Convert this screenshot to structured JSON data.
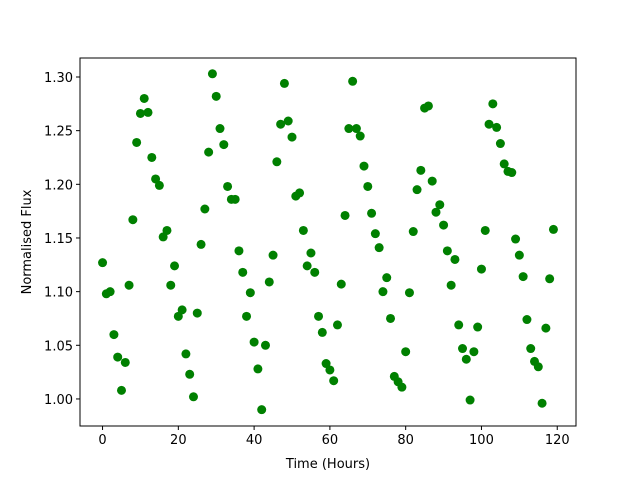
{
  "chart_data": {
    "type": "scatter",
    "xlabel": "Time (Hours)",
    "ylabel": "Normalised Flux",
    "series": [
      {
        "color": "#008000",
        "x": [
          0,
          1,
          2,
          3,
          4,
          5,
          6,
          7,
          8,
          9,
          10,
          11,
          12,
          13,
          14,
          15,
          16,
          17,
          18,
          19,
          20,
          21,
          22,
          23,
          24,
          25,
          26,
          27,
          28,
          29,
          30,
          31,
          32,
          33,
          34,
          35,
          36,
          37,
          38,
          39,
          40,
          41,
          42,
          43,
          44,
          45,
          46,
          47,
          48,
          49,
          50,
          51,
          52,
          53,
          54,
          55,
          56,
          57,
          58,
          59,
          60,
          61,
          62,
          63,
          64,
          65,
          66,
          67,
          68,
          69,
          70,
          71,
          72,
          73,
          74,
          75,
          76,
          77,
          78,
          79,
          80,
          81,
          82,
          83,
          84,
          85,
          86,
          87,
          88,
          89,
          90,
          91,
          92,
          93,
          94,
          95,
          96,
          97,
          98,
          99,
          100,
          101,
          102,
          103,
          104,
          105,
          106,
          107,
          108,
          109,
          110,
          111,
          112,
          113,
          114,
          115,
          116,
          117,
          118,
          119
        ],
        "values": [
          1.127,
          1.098,
          1.1,
          1.06,
          1.039,
          1.008,
          1.034,
          1.106,
          1.167,
          1.239,
          1.266,
          1.28,
          1.267,
          1.225,
          1.205,
          1.199,
          1.151,
          1.157,
          1.106,
          1.124,
          1.077,
          1.083,
          1.042,
          1.023,
          1.002,
          1.08,
          1.144,
          1.177,
          1.23,
          1.303,
          1.282,
          1.252,
          1.237,
          1.198,
          1.186,
          1.186,
          1.138,
          1.118,
          1.077,
          1.099,
          1.053,
          1.028,
          0.99,
          1.05,
          1.109,
          1.134,
          1.221,
          1.256,
          1.294,
          1.259,
          1.244,
          1.189,
          1.192,
          1.157,
          1.124,
          1.136,
          1.118,
          1.077,
          1.062,
          1.033,
          1.027,
          1.017,
          1.069,
          1.107,
          1.171,
          1.252,
          1.296,
          1.252,
          1.245,
          1.217,
          1.198,
          1.173,
          1.154,
          1.141,
          1.1,
          1.113,
          1.075,
          1.021,
          1.016,
          1.011,
          1.044,
          1.099,
          1.156,
          1.195,
          1.213,
          1.271,
          1.273,
          1.203,
          1.174,
          1.181,
          1.162,
          1.138,
          1.106,
          1.13,
          1.069,
          1.047,
          1.037,
          0.999,
          1.044,
          1.067,
          1.121,
          1.157,
          1.256,
          1.275,
          1.253,
          1.238,
          1.219,
          1.212,
          1.211,
          1.149,
          1.134,
          1.114,
          1.074,
          1.047,
          1.035,
          1.03,
          0.996,
          1.066,
          1.112,
          1.158
        ]
      }
    ],
    "xlim": [
      -5.95,
      124.95
    ],
    "ylim": [
      0.9748,
      1.3177
    ],
    "xticks": [
      0,
      20,
      40,
      60,
      80,
      100,
      120
    ],
    "yticks": [
      {
        "value": 1.0,
        "label": "1.00"
      },
      {
        "value": 1.05,
        "label": "1.05"
      },
      {
        "value": 1.1,
        "label": "1.10"
      },
      {
        "value": 1.15,
        "label": "1.15"
      },
      {
        "value": 1.2,
        "label": "1.20"
      },
      {
        "value": 1.25,
        "label": "1.25"
      },
      {
        "value": 1.3,
        "label": "1.30"
      }
    ]
  }
}
